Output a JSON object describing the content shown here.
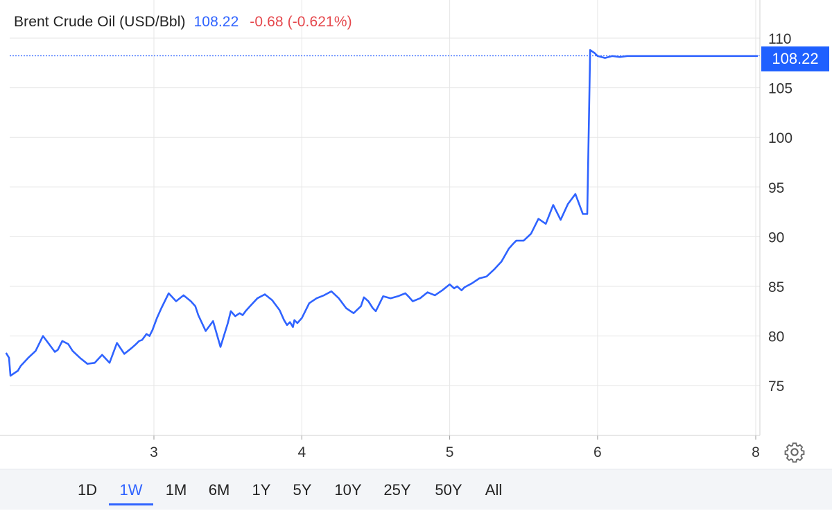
{
  "legend": {
    "name": "Brent Crude Oil (USD/Bbl)",
    "last": "108.22",
    "change": "-0.68 (-0.621%)"
  },
  "price_tag": "108.22",
  "colors": {
    "line": "#2f63ff",
    "price_tag_bg": "#1f60ff",
    "negative": "#e5484d",
    "grid": "#e6e6e6"
  },
  "range_buttons": [
    {
      "label": "1D",
      "active": false
    },
    {
      "label": "1W",
      "active": true
    },
    {
      "label": "1M",
      "active": false
    },
    {
      "label": "6M",
      "active": false
    },
    {
      "label": "1Y",
      "active": false
    },
    {
      "label": "5Y",
      "active": false
    },
    {
      "label": "10Y",
      "active": false
    },
    {
      "label": "25Y",
      "active": false
    },
    {
      "label": "50Y",
      "active": false
    },
    {
      "label": "All",
      "active": false
    }
  ],
  "icons": {
    "settings": "gear-icon"
  },
  "chart_data": {
    "type": "line",
    "title": "Brent Crude Oil (USD/Bbl)",
    "xlabel": "",
    "ylabel": "",
    "x_ticks": [
      "3",
      "4",
      "5",
      "6",
      "8"
    ],
    "y_ticks": [
      75,
      80,
      85,
      90,
      95,
      100,
      105,
      110
    ],
    "xlim": [
      2.0,
      7.95
    ],
    "ylim": [
      70,
      112
    ],
    "grid": true,
    "last_price_line": 108.22,
    "series": [
      {
        "x": [
          2.0,
          2.02,
          2.03,
          2.05,
          2.08,
          2.1,
          2.15,
          2.2,
          2.25,
          2.3,
          2.33,
          2.35,
          2.38,
          2.42,
          2.45,
          2.5,
          2.55,
          2.6,
          2.65,
          2.7,
          2.75,
          2.8,
          2.85,
          2.88,
          2.9,
          2.92,
          2.95,
          2.97,
          2.99,
          3.02,
          3.05,
          3.1,
          3.15,
          3.2,
          3.25,
          3.28,
          3.3,
          3.35,
          3.4,
          3.45,
          3.5,
          3.52,
          3.55,
          3.58,
          3.6,
          3.62,
          3.65,
          3.7,
          3.75,
          3.8,
          3.85,
          3.88,
          3.9,
          3.92,
          3.94,
          3.95,
          3.97,
          4.0,
          4.05,
          4.1,
          4.15,
          4.2,
          4.25,
          4.3,
          4.35,
          4.4,
          4.42,
          4.45,
          4.48,
          4.5,
          4.55,
          4.6,
          4.65,
          4.7,
          4.72,
          4.75,
          4.8,
          4.85,
          4.9,
          4.95,
          5.0,
          5.03,
          5.05,
          5.08,
          5.1,
          5.15,
          5.2,
          5.25,
          5.3,
          5.35,
          5.4,
          5.43,
          5.45,
          5.5,
          5.55,
          5.6,
          5.65,
          5.7,
          5.75,
          5.8,
          5.85,
          5.9,
          5.93,
          5.95,
          5.98,
          6.0,
          6.05,
          6.1,
          6.15,
          6.2,
          6.25,
          6.3,
          6.35,
          6.4,
          6.45,
          6.5,
          6.55,
          6.6,
          6.65,
          6.7,
          6.75,
          6.8,
          6.83,
          6.85,
          6.88,
          6.9,
          6.93,
          6.94,
          6.95,
          6.98
        ],
        "y": [
          78.3,
          77.8,
          76.0,
          76.2,
          76.5,
          77.0,
          77.8,
          78.5,
          80.0,
          79.0,
          78.4,
          78.6,
          79.5,
          79.2,
          78.5,
          77.8,
          77.2,
          77.3,
          78.1,
          77.3,
          79.3,
          78.2,
          78.8,
          79.2,
          79.5,
          79.6,
          80.2,
          80.0,
          80.6,
          81.8,
          82.8,
          84.3,
          83.5,
          84.1,
          83.5,
          83.0,
          82.1,
          80.5,
          81.5,
          78.9,
          81.3,
          82.5,
          82.0,
          82.3,
          82.1,
          82.5,
          83.0,
          83.8,
          84.2,
          83.6,
          82.6,
          81.6,
          81.1,
          81.4,
          80.9,
          81.6,
          81.3,
          81.8,
          83.3,
          83.8,
          84.1,
          84.5,
          83.8,
          82.8,
          82.3,
          83.0,
          83.9,
          83.5,
          82.8,
          82.5,
          84.0,
          83.8,
          84.0,
          84.3,
          84.0,
          83.5,
          83.8,
          84.4,
          84.1,
          84.6,
          85.2,
          84.8,
          85.0,
          84.6,
          84.9,
          85.3,
          85.8,
          86.0,
          86.7,
          87.5,
          88.8,
          89.3,
          89.6,
          89.6,
          90.3,
          91.8,
          91.3,
          93.2,
          91.7,
          93.3,
          94.3,
          92.3,
          92.3,
          108.8,
          108.5,
          108.2,
          108.0,
          108.2,
          108.1,
          108.2,
          108.2,
          108.2,
          108.2,
          108.2,
          108.2,
          108.2,
          108.2,
          108.2,
          108.2,
          108.2,
          108.2,
          108.2,
          108.2,
          108.2,
          108.2,
          108.2,
          108.2,
          108.2,
          108.2,
          108.2
        ]
      }
    ]
  }
}
